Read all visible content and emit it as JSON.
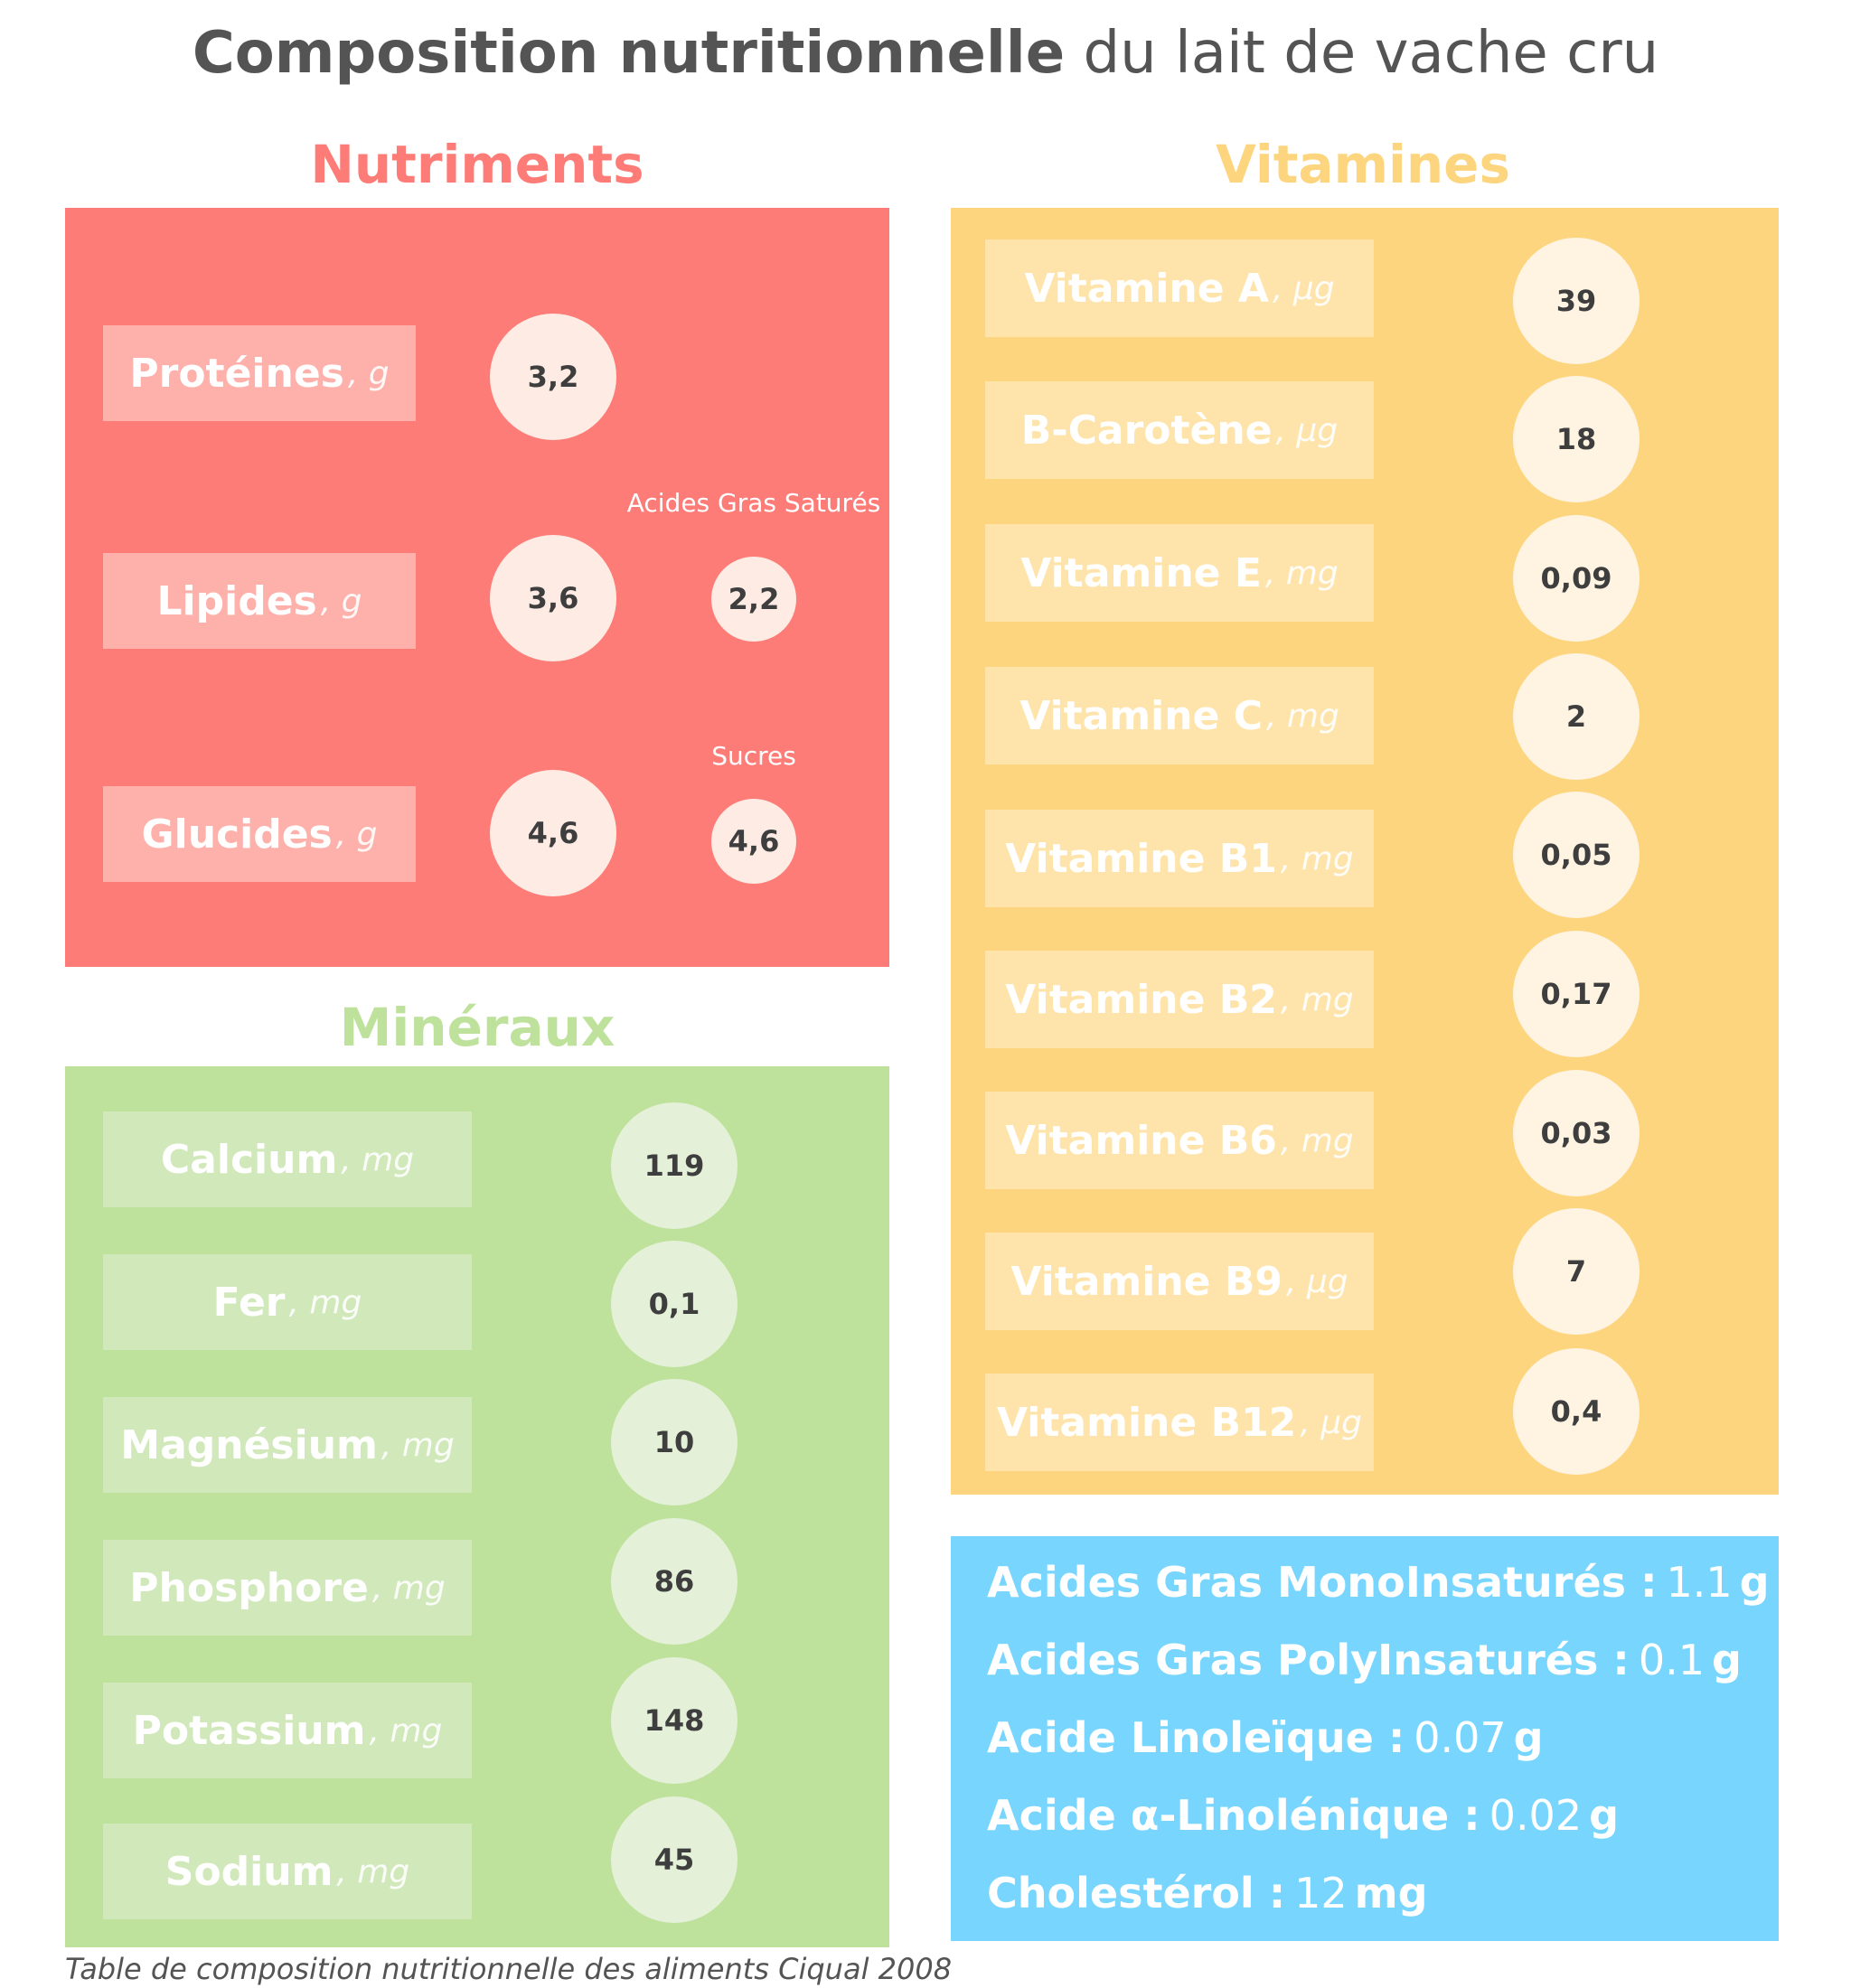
{
  "title": {
    "bold": "Composition nutritionnelle",
    "rest": " du lait de vache cru"
  },
  "colors": {
    "nutriments": "#fe7c77",
    "nutriments_label": "#feb0ab",
    "nutriments_circle": "#feebe3",
    "vitamines": "#fed57f",
    "vitamines_label": "#fee4aa",
    "vitamines_circle": "#fff4e2",
    "mineraux": "#bee29c",
    "mineraux_label": "#d1e8bb",
    "mineraux_circle": "#e4f1d8",
    "fats": "#78d5fe"
  },
  "nutriments": {
    "heading": "Nutriments",
    "rows": [
      {
        "name": "Protéines",
        "unit": ", g",
        "value": "3,2"
      },
      {
        "name": "Lipides",
        "unit": ", g",
        "value": "3,6",
        "sub_label": "Acides Gras Saturés",
        "sub_value": "2,2"
      },
      {
        "name": "Glucides",
        "unit": ", g",
        "value": "4,6",
        "sub_label": "Sucres",
        "sub_value": "4,6"
      }
    ]
  },
  "vitamines": {
    "heading": "Vitamines",
    "rows": [
      {
        "name": "Vitamine A",
        "unit": ", µg",
        "value": "39"
      },
      {
        "name": "B-Carotène",
        "unit": ", µg",
        "value": "18"
      },
      {
        "name": "Vitamine E",
        "unit": ", mg",
        "value": "0,09"
      },
      {
        "name": "Vitamine C",
        "unit": ", mg",
        "value": "2"
      },
      {
        "name": "Vitamine B1",
        "unit": ", mg",
        "value": "0,05"
      },
      {
        "name": "Vitamine B2",
        "unit": ", mg",
        "value": "0,17"
      },
      {
        "name": "Vitamine B6",
        "unit": ", mg",
        "value": "0,03"
      },
      {
        "name": "Vitamine B9",
        "unit": ", µg",
        "value": "7"
      },
      {
        "name": "Vitamine B12",
        "unit": ", µg",
        "value": "0,4"
      }
    ]
  },
  "mineraux": {
    "heading": "Minéraux",
    "rows": [
      {
        "name": "Calcium",
        "unit": ", mg",
        "value": "119"
      },
      {
        "name": "Fer",
        "unit": ", mg",
        "value": "0,1"
      },
      {
        "name": "Magnésium",
        "unit": ", mg",
        "value": "10"
      },
      {
        "name": "Phosphore",
        "unit": ", mg",
        "value": "86"
      },
      {
        "name": "Potassium",
        "unit": ", mg",
        "value": "148"
      },
      {
        "name": "Sodium",
        "unit": ", mg",
        "value": "45"
      }
    ]
  },
  "fats": [
    {
      "name": "Acides Gras MonoInsaturés :",
      "value": "1.1",
      "unit": "g"
    },
    {
      "name": "Acides Gras PolyInsaturés :",
      "value": "0.1",
      "unit": "g"
    },
    {
      "name": "Acide Linoleïque :",
      "value": "0.07",
      "unit": "g"
    },
    {
      "name": "Acide α-Linolénique :",
      "value": "0.02",
      "unit": "g"
    },
    {
      "name": "Cholestérol :",
      "value": "12",
      "unit": "mg"
    }
  ],
  "source": "Table de composition nutritionnelle des aliments Ciqual 2008"
}
